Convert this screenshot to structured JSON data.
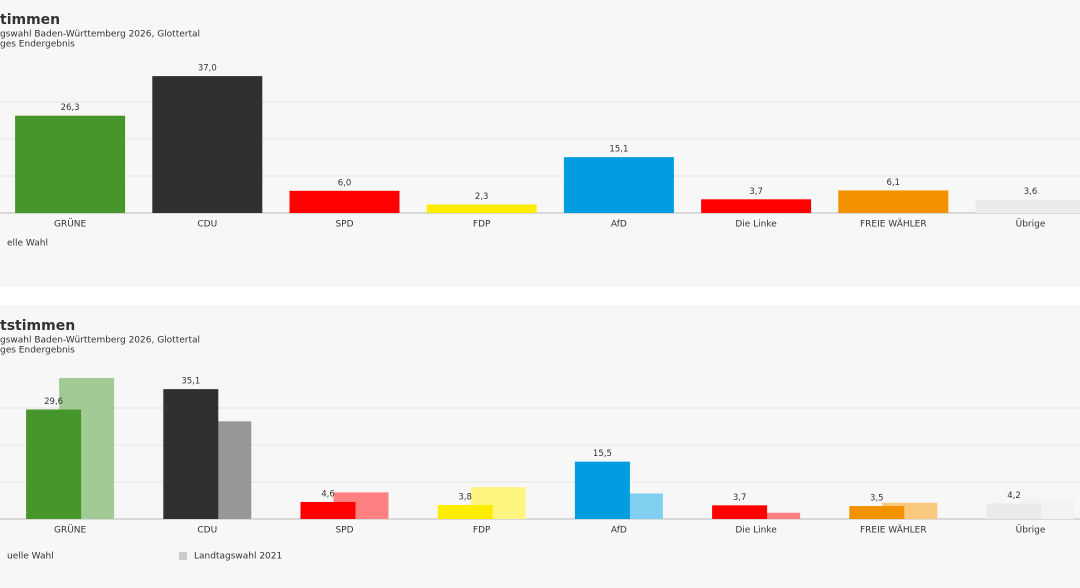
{
  "chart_data": [
    {
      "type": "bar",
      "title": "timmen",
      "subtitle": "gswahl Baden-Württemberg 2026, Glottertal",
      "note": "ges Endergebnis",
      "categories": [
        "GRÜNE",
        "CDU",
        "SPD",
        "FDP",
        "AfD",
        "Die Linke",
        "FREIE WÄHLER",
        "Übrige"
      ],
      "series": [
        {
          "name": "elle Wahl",
          "colors": [
            "#46962b",
            "#32302e",
            "#ff0000",
            "#ffed00",
            "#009ee0",
            "#ff0000",
            "#f39200",
            "#ebebeb"
          ],
          "values": [
            26.3,
            37.0,
            6.0,
            2.3,
            15.1,
            3.7,
            6.1,
            3.6
          ],
          "value_labels": [
            "26,3",
            "37,0",
            "6,0",
            "2,3",
            "15,1",
            "3,7",
            "6,1",
            "3,6"
          ]
        }
      ],
      "ylim": [
        0,
        40
      ],
      "yticks": [
        0,
        10,
        20,
        30
      ],
      "grid": true
    },
    {
      "type": "grouped_bar",
      "title": "tstimmen",
      "subtitle": "gswahl Baden-Württemberg 2026, Glottertal",
      "note": "ges Endergebnis",
      "categories": [
        "GRÜNE",
        "CDU",
        "SPD",
        "FDP",
        "AfD",
        "Die Linke",
        "FREIE WÄHLER",
        "Übrige"
      ],
      "series": [
        {
          "name": "uelle Wahl",
          "colors": [
            "#46962b",
            "#32302e",
            "#ff0000",
            "#ffed00",
            "#009ee0",
            "#ff0000",
            "#f39200",
            "#ebebeb"
          ],
          "values": [
            29.6,
            35.1,
            4.6,
            3.8,
            15.5,
            3.7,
            3.5,
            4.2
          ],
          "value_labels": [
            "29,6",
            "35,1",
            "4,6",
            "3,8",
            "15,5",
            "3,7",
            "3,5",
            "4,2"
          ]
        },
        {
          "name": "Landtagswahl 2021",
          "color": "#cccccc",
          "colors": [
            "#a2ca95",
            "#989796",
            "#ff8080",
            "#fff580",
            "#80cff0",
            "#ff8080",
            "#f9c980",
            "#f3f3f3"
          ],
          "values": [
            38.1,
            26.4,
            7.2,
            8.6,
            6.9,
            1.7,
            4.4,
            5.6
          ]
        }
      ],
      "ylim": [
        0,
        40
      ],
      "yticks": [
        0,
        10,
        20,
        30
      ],
      "grid": true
    }
  ]
}
